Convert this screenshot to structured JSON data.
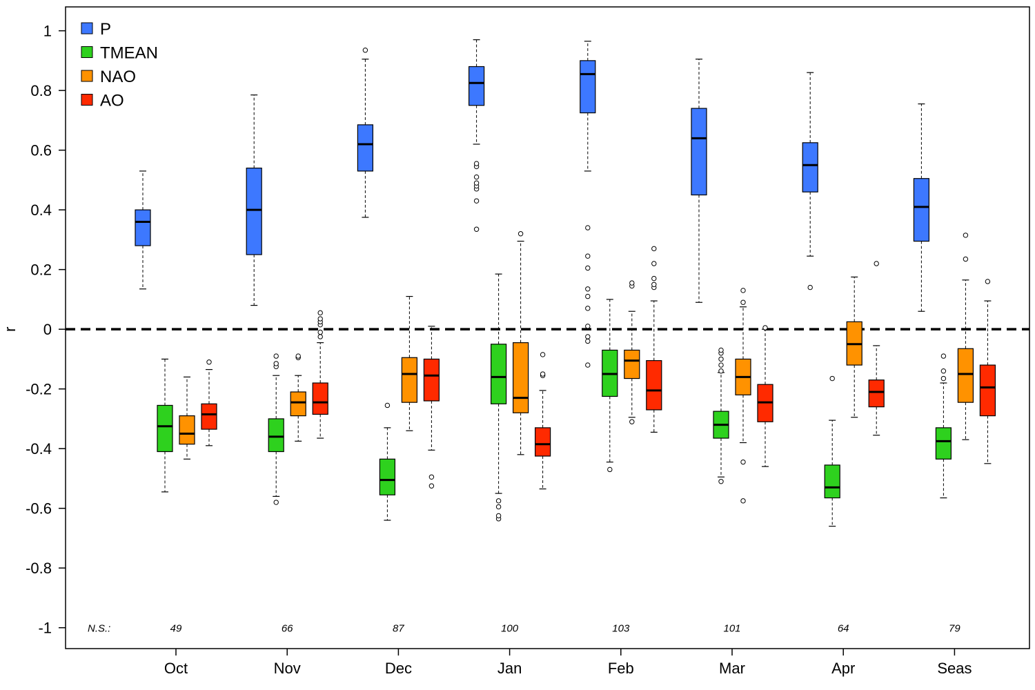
{
  "chart_data": {
    "type": "boxplot",
    "ylabel": "r",
    "ylim": [
      -1.07,
      1.08
    ],
    "yticks": [
      1,
      0.8,
      0.6,
      0.4,
      0.2,
      0,
      -0.2,
      -0.4,
      -0.6,
      -0.8,
      -1
    ],
    "ytick_labels": [
      "1",
      "0.8",
      "0.6",
      "0.4",
      "0.2",
      "0",
      "-0.2",
      "-0.4",
      "-0.6",
      "-0.8",
      "-1"
    ],
    "categories": [
      "Oct",
      "Nov",
      "Dec",
      "Jan",
      "Feb",
      "Mar",
      "Apr",
      "Seas"
    ],
    "reference_line": 0,
    "legend_position": "top-left",
    "ns_label": "N.S.:",
    "ns_values": [
      "49",
      "66",
      "87",
      "100",
      "103",
      "101",
      "64",
      "79"
    ],
    "series": [
      {
        "name": "P",
        "color": "#3d78ff",
        "boxes": [
          {
            "low": 0.135,
            "q1": 0.28,
            "median": 0.36,
            "q3": 0.4,
            "high": 0.53,
            "outliers": []
          },
          {
            "low": 0.08,
            "q1": 0.25,
            "median": 0.4,
            "q3": 0.54,
            "high": 0.785,
            "outliers": []
          },
          {
            "low": 0.375,
            "q1": 0.53,
            "median": 0.62,
            "q3": 0.685,
            "high": 0.905,
            "outliers": [
              0.935
            ]
          },
          {
            "low": 0.62,
            "q1": 0.75,
            "median": 0.825,
            "q3": 0.88,
            "high": 0.97,
            "outliers": [
              0.335,
              0.43,
              0.47,
              0.48,
              0.49,
              0.51,
              0.545,
              0.555
            ]
          },
          {
            "low": 0.53,
            "q1": 0.725,
            "median": 0.855,
            "q3": 0.9,
            "high": 0.965,
            "outliers": [
              -0.12,
              -0.04,
              -0.025,
              0.01,
              0.07,
              0.11,
              0.135,
              0.205,
              0.245,
              0.34
            ]
          },
          {
            "low": 0.09,
            "q1": 0.45,
            "median": 0.64,
            "q3": 0.74,
            "high": 0.905,
            "outliers": []
          },
          {
            "low": 0.245,
            "q1": 0.46,
            "median": 0.55,
            "q3": 0.625,
            "high": 0.86,
            "outliers": [
              0.14
            ]
          },
          {
            "low": 0.06,
            "q1": 0.295,
            "median": 0.41,
            "q3": 0.505,
            "high": 0.755,
            "outliers": []
          }
        ]
      },
      {
        "name": "TMEAN",
        "color": "#2ed11e",
        "boxes": [
          {
            "low": -0.545,
            "q1": -0.41,
            "median": -0.325,
            "q3": -0.255,
            "high": -0.1,
            "outliers": []
          },
          {
            "low": -0.56,
            "q1": -0.41,
            "median": -0.36,
            "q3": -0.3,
            "high": -0.155,
            "outliers": [
              -0.58,
              -0.125,
              -0.115,
              -0.09
            ]
          },
          {
            "low": -0.64,
            "q1": -0.555,
            "median": -0.505,
            "q3": -0.435,
            "high": -0.33,
            "outliers": [
              -0.255
            ]
          },
          {
            "low": -0.55,
            "q1": -0.25,
            "median": -0.16,
            "q3": -0.05,
            "high": 0.185,
            "outliers": [
              -0.635,
              -0.625,
              -0.595,
              -0.575
            ]
          },
          {
            "low": -0.445,
            "q1": -0.225,
            "median": -0.15,
            "q3": -0.07,
            "high": 0.1,
            "outliers": [
              -0.47
            ]
          },
          {
            "low": -0.495,
            "q1": -0.365,
            "median": -0.32,
            "q3": -0.275,
            "high": -0.145,
            "outliers": [
              -0.51,
              -0.14,
              -0.12,
              -0.1,
              -0.08,
              -0.07
            ]
          },
          {
            "low": -0.66,
            "q1": -0.565,
            "median": -0.53,
            "q3": -0.455,
            "high": -0.305,
            "outliers": [
              -0.165
            ]
          },
          {
            "low": -0.565,
            "q1": -0.435,
            "median": -0.375,
            "q3": -0.33,
            "high": -0.18,
            "outliers": [
              -0.165,
              -0.14,
              -0.09
            ]
          }
        ]
      },
      {
        "name": "NAO",
        "color": "#ff9200",
        "boxes": [
          {
            "low": -0.435,
            "q1": -0.385,
            "median": -0.35,
            "q3": -0.29,
            "high": -0.16,
            "outliers": []
          },
          {
            "low": -0.375,
            "q1": -0.29,
            "median": -0.245,
            "q3": -0.21,
            "high": -0.155,
            "outliers": [
              -0.095,
              -0.09
            ]
          },
          {
            "low": -0.34,
            "q1": -0.245,
            "median": -0.15,
            "q3": -0.095,
            "high": 0.11,
            "outliers": []
          },
          {
            "low": -0.42,
            "q1": -0.28,
            "median": -0.23,
            "q3": -0.045,
            "high": 0.295,
            "outliers": [
              0.32
            ]
          },
          {
            "low": -0.295,
            "q1": -0.165,
            "median": -0.105,
            "q3": -0.07,
            "high": 0.06,
            "outliers": [
              -0.31,
              0.145,
              0.155
            ]
          },
          {
            "low": -0.38,
            "q1": -0.22,
            "median": -0.16,
            "q3": -0.1,
            "high": 0.075,
            "outliers": [
              -0.575,
              -0.445,
              0.09,
              0.13
            ]
          },
          {
            "low": -0.295,
            "q1": -0.12,
            "median": -0.05,
            "q3": 0.025,
            "high": 0.175,
            "outliers": []
          },
          {
            "low": -0.37,
            "q1": -0.245,
            "median": -0.15,
            "q3": -0.065,
            "high": 0.165,
            "outliers": [
              0.235,
              0.315
            ]
          }
        ]
      },
      {
        "name": "AO",
        "color": "#ff2a00",
        "boxes": [
          {
            "low": -0.39,
            "q1": -0.335,
            "median": -0.285,
            "q3": -0.25,
            "high": -0.135,
            "outliers": [
              -0.11
            ]
          },
          {
            "low": -0.365,
            "q1": -0.285,
            "median": -0.245,
            "q3": -0.18,
            "high": -0.045,
            "outliers": [
              -0.025,
              -0.01,
              0.015,
              0.025,
              0.035,
              0.055
            ]
          },
          {
            "low": -0.405,
            "q1": -0.24,
            "median": -0.155,
            "q3": -0.1,
            "high": 0.01,
            "outliers": [
              -0.525,
              -0.495
            ]
          },
          {
            "low": -0.535,
            "q1": -0.425,
            "median": -0.385,
            "q3": -0.33,
            "high": -0.205,
            "outliers": [
              -0.155,
              -0.15,
              -0.085
            ]
          },
          {
            "low": -0.345,
            "q1": -0.27,
            "median": -0.205,
            "q3": -0.105,
            "high": 0.095,
            "outliers": [
              0.14,
              0.15,
              0.17,
              0.22,
              0.27
            ]
          },
          {
            "low": -0.46,
            "q1": -0.31,
            "median": -0.245,
            "q3": -0.185,
            "high": 0.0,
            "outliers": [
              0.005
            ]
          },
          {
            "low": -0.355,
            "q1": -0.26,
            "median": -0.21,
            "q3": -0.17,
            "high": -0.055,
            "outliers": [
              0.22
            ]
          },
          {
            "low": -0.45,
            "q1": -0.29,
            "median": -0.195,
            "q3": -0.12,
            "high": 0.095,
            "outliers": [
              0.16
            ]
          }
        ]
      }
    ]
  }
}
